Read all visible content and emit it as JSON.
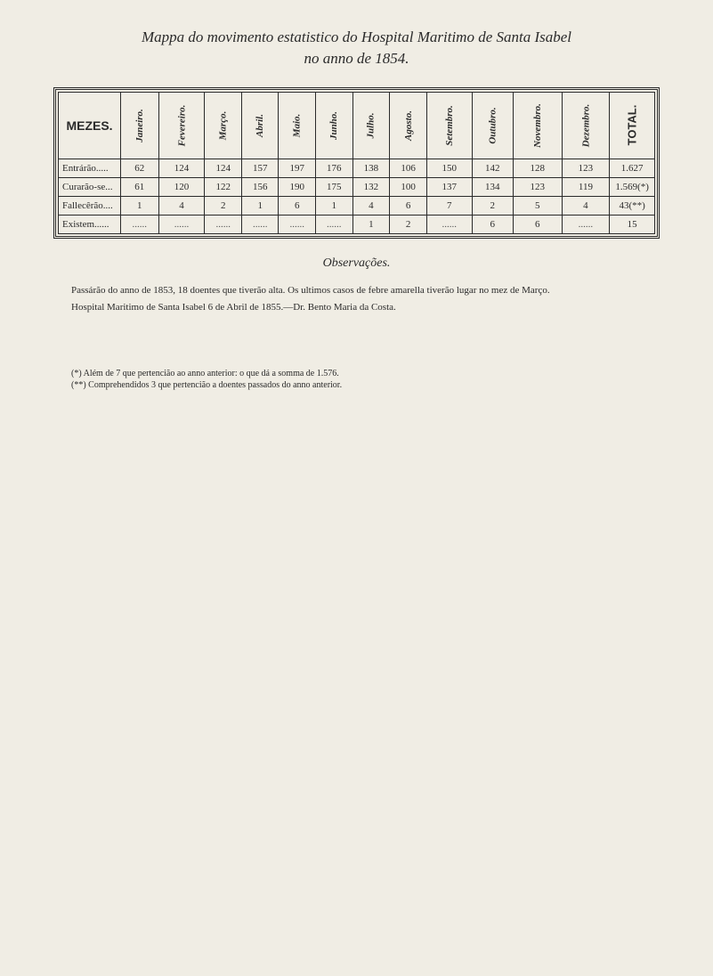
{
  "title_line1": "Mappa do movimento estatistico do Hospital Maritimo de Santa Isabel",
  "title_line2": "no anno de 1854.",
  "table": {
    "header_mezes": "MEZES.",
    "months": [
      "Janeiro.",
      "Fevereiro.",
      "Março.",
      "Abril.",
      "Maio.",
      "Junho.",
      "Julho.",
      "Agosto.",
      "Setembro.",
      "Outubro.",
      "Novembro.",
      "Dezembro."
    ],
    "header_total": "TOTAL.",
    "rows": [
      {
        "label": "Entrárão.....",
        "cells": [
          "62",
          "124",
          "124",
          "157",
          "197",
          "176",
          "138",
          "106",
          "150",
          "142",
          "128",
          "123"
        ],
        "total": "1.627"
      },
      {
        "label": "Curarão-se...",
        "cells": [
          "61",
          "120",
          "122",
          "156",
          "190",
          "175",
          "132",
          "100",
          "137",
          "134",
          "123",
          "119"
        ],
        "total": "1.569(*)"
      },
      {
        "label": "Fallecêrão....",
        "cells": [
          "1",
          "4",
          "2",
          "1",
          "6",
          "1",
          "4",
          "6",
          "7",
          "2",
          "5",
          "4"
        ],
        "total": "43(**)"
      },
      {
        "label": "Existem......",
        "cells": [
          "......",
          "......",
          "......",
          "......",
          "......",
          "......",
          "1",
          "2",
          "......",
          "6",
          "6",
          "......"
        ],
        "total": "15"
      }
    ]
  },
  "observacoes_title": "Observações.",
  "paragraph1": "Passárão do anno de 1853, 18 doentes que tiverão alta. Os ultimos casos de febre amarella tiverão lugar no mez de Março.",
  "paragraph2": "Hospital Maritimo de Santa Isabel 6 de Abril de 1855.—Dr. Bento Maria da Costa.",
  "footnote1": "(*) Além de 7 que pertencião ao anno anterior: o que dá a somma de 1.576.",
  "footnote2": "(**) Comprehendidos 3 que pertencião a doentes passados do anno anterior."
}
